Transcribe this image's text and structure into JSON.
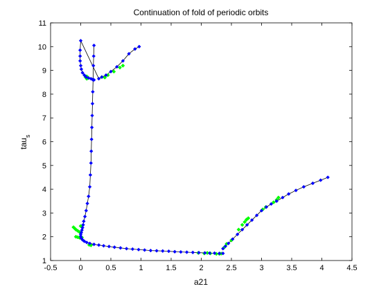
{
  "chart_data": {
    "type": "line",
    "title": "Continuation of fold of periodic orbits",
    "xlabel": "a21",
    "ylabel": "tau",
    "ylabel_subscript": "s",
    "xlim": [
      -0.5,
      4.5
    ],
    "ylim": [
      1,
      11
    ],
    "x_ticks": [
      "-0.5",
      "0",
      "0.5",
      "1",
      "1.5",
      "2",
      "2.5",
      "3",
      "3.5",
      "4",
      "4.5"
    ],
    "y_ticks": [
      "1",
      "2",
      "3",
      "4",
      "5",
      "6",
      "7",
      "8",
      "9",
      "10",
      "11"
    ],
    "grid": false,
    "legend": "none",
    "line_color": "#000000",
    "series": [
      {
        "color": "#0000ff",
        "marker": "diamond",
        "branches": [
          {
            "x": [
              0.22,
              0.215,
              0.21,
              0.205,
              0.2,
              0.195,
              0.19,
              0.185,
              0.18,
              0.175,
              0.17,
              0.16,
              0.15,
              0.13,
              0.11,
              0.09,
              0.07,
              0.05,
              0.04,
              0.03,
              0.02,
              0.01,
              0.0,
              0.0,
              0.01,
              0.03,
              0.06,
              0.1,
              0.15,
              0.22,
              0.3,
              0.38,
              0.47,
              0.56,
              0.66,
              0.76,
              0.86,
              0.96,
              1.06,
              1.16,
              1.26,
              1.36,
              1.46,
              1.56,
              1.66,
              1.76,
              1.86,
              1.96,
              2.06,
              2.14,
              2.22,
              2.3,
              2.36
            ],
            "y": [
              10.05,
              9.6,
              9.2,
              8.6,
              8.1,
              7.6,
              7.1,
              6.6,
              6.1,
              5.6,
              5.1,
              4.6,
              4.1,
              3.7,
              3.4,
              3.1,
              2.85,
              2.65,
              2.5,
              2.38,
              2.28,
              2.18,
              2.1,
              2.02,
              1.94,
              1.87,
              1.81,
              1.76,
              1.72,
              1.68,
              1.65,
              1.62,
              1.59,
              1.56,
              1.53,
              1.5,
              1.48,
              1.46,
              1.44,
              1.42,
              1.41,
              1.4,
              1.39,
              1.37,
              1.36,
              1.35,
              1.34,
              1.33,
              1.32,
              1.31,
              1.31,
              1.3,
              1.3
            ]
          },
          {
            "x": [
              0.22,
              0.2,
              0.17,
              0.13,
              0.09,
              0.06,
              0.03,
              0.01,
              0.0,
              -0.01,
              -0.01,
              -0.01,
              0.0,
              0.3,
              0.35,
              0.42,
              0.5,
              0.6,
              0.7,
              0.8,
              0.9,
              0.97
            ],
            "y": [
              8.6,
              8.62,
              8.65,
              8.68,
              8.72,
              8.8,
              8.9,
              9.05,
              9.2,
              9.4,
              9.6,
              9.85,
              10.25,
              8.65,
              8.72,
              8.8,
              8.95,
              9.15,
              9.4,
              9.7,
              9.9,
              10.0
            ]
          },
          {
            "x": [
              2.36,
              2.4,
              2.45,
              2.52,
              2.6,
              2.68,
              2.76,
              2.84,
              2.92,
              3.0,
              3.08,
              3.16,
              3.25,
              3.35,
              3.45,
              3.57,
              3.7,
              3.85,
              3.98,
              4.1
            ],
            "y": [
              1.5,
              1.6,
              1.72,
              1.9,
              2.1,
              2.3,
              2.5,
              2.7,
              2.9,
              3.1,
              3.25,
              3.38,
              3.5,
              3.65,
              3.8,
              3.95,
              4.1,
              4.25,
              4.38,
              4.5
            ]
          }
        ]
      },
      {
        "color": "#00ff00",
        "marker": "diamond",
        "points": {
          "x": [
            -0.12,
            -0.1,
            -0.08,
            -0.05,
            -0.02,
            0.0,
            -0.08,
            -0.05,
            -0.02,
            0.0,
            0.02,
            0.14,
            0.17,
            0.1,
            0.12,
            0.08,
            0.1,
            0.12,
            0.35,
            0.4,
            0.45,
            0.55,
            0.65,
            0.7,
            1.95,
            2.05,
            2.1,
            2.15,
            2.25,
            2.3,
            2.33,
            2.38,
            2.42,
            2.5,
            2.62,
            2.68,
            2.72,
            2.75,
            2.78,
            3.02,
            3.07,
            3.2,
            3.25,
            3.28
          ],
          "y": [
            2.4,
            2.35,
            2.3,
            2.25,
            2.2,
            2.45,
            2.0,
            1.98,
            1.96,
            1.95,
            1.97,
            1.66,
            1.64,
            8.65,
            8.68,
            8.72,
            8.75,
            8.7,
            8.72,
            8.7,
            8.8,
            8.95,
            9.12,
            9.2,
            1.32,
            1.3,
            1.32,
            1.3,
            1.28,
            1.28,
            1.29,
            1.55,
            1.7,
            1.85,
            2.3,
            2.5,
            2.62,
            2.72,
            2.78,
            3.15,
            3.25,
            3.45,
            3.55,
            3.65
          ]
        }
      }
    ]
  }
}
